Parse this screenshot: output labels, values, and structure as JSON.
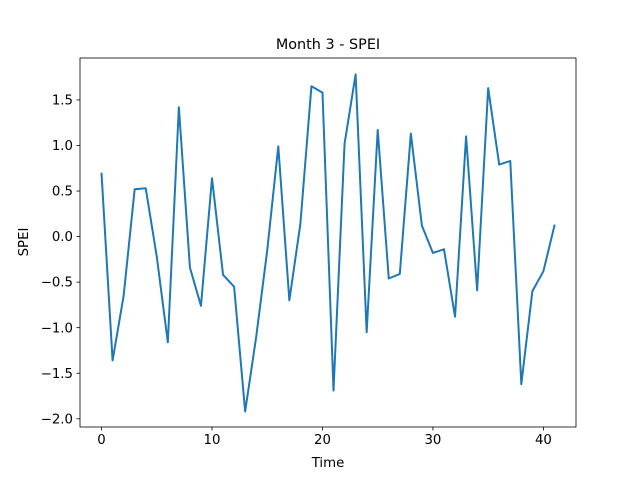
{
  "chart_data": {
    "type": "line",
    "title": "Month 3 - SPEI",
    "xlabel": "Time",
    "ylabel": "SPEI",
    "xlim": [
      -1.95,
      42.95
    ],
    "ylim": [
      -2.09,
      1.96
    ],
    "xticks": [
      0,
      10,
      20,
      30,
      40
    ],
    "xtick_labels": [
      "0",
      "10",
      "20",
      "30",
      "40"
    ],
    "yticks": [
      -2.0,
      -1.5,
      -1.0,
      -0.5,
      0.0,
      0.5,
      1.0,
      1.5
    ],
    "ytick_labels": [
      "−2.0",
      "−1.5",
      "−1.0",
      "−0.5",
      "0.0",
      "0.5",
      "1.0",
      "1.5"
    ],
    "grid": false,
    "series": [
      {
        "color": "#1f77b4",
        "x": [
          0,
          1,
          2,
          3,
          4,
          5,
          6,
          7,
          8,
          9,
          10,
          11,
          12,
          13,
          14,
          15,
          16,
          17,
          18,
          19,
          20,
          21,
          22,
          23,
          24,
          25,
          26,
          27,
          28,
          29,
          30,
          31,
          32,
          33,
          34,
          35,
          36,
          37,
          38,
          39,
          40,
          41
        ],
        "values": [
          0.69,
          -1.36,
          -0.65,
          0.52,
          0.53,
          -0.22,
          -1.16,
          1.42,
          -0.34,
          -0.76,
          0.64,
          -0.42,
          -0.55,
          -1.92,
          -1.1,
          -0.15,
          0.99,
          -0.7,
          0.14,
          1.65,
          1.58,
          -1.69,
          1.02,
          1.78,
          -1.05,
          1.17,
          -0.46,
          -0.41,
          1.13,
          0.12,
          -0.18,
          -0.14,
          -0.88,
          1.1,
          -0.59,
          1.63,
          0.79,
          0.83,
          -1.62,
          -0.6,
          -0.38,
          0.12
        ]
      }
    ]
  }
}
